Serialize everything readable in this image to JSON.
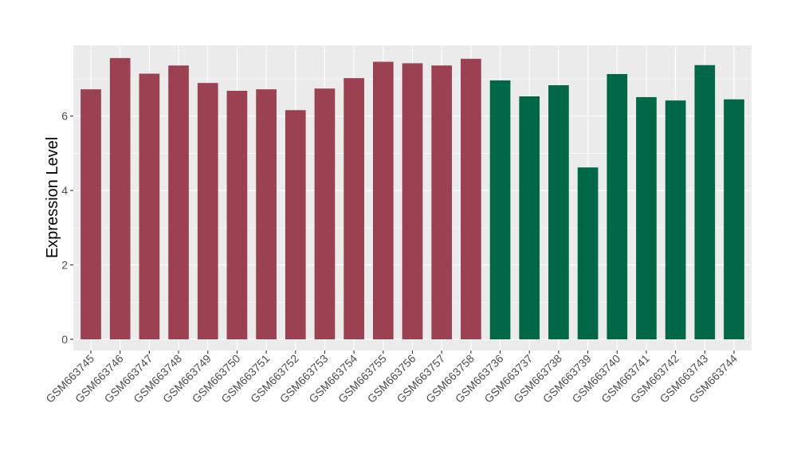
{
  "chart_data": {
    "type": "bar",
    "ylabel": "Expression Level",
    "xlabel": "",
    "ylim": [
      -0.3,
      7.9
    ],
    "yticks": [
      0,
      2,
      4,
      6
    ],
    "grid": true,
    "panel_background": "#ebebeb",
    "categories": [
      "GSM663745",
      "GSM663746",
      "GSM663747",
      "GSM663748",
      "GSM663749",
      "GSM663750",
      "GSM663751",
      "GSM663752",
      "GSM663753",
      "GSM663754",
      "GSM663755",
      "GSM663756",
      "GSM663757",
      "GSM663758",
      "GSM663736",
      "GSM663737",
      "GSM663738",
      "GSM663739",
      "GSM663740",
      "GSM663741",
      "GSM663742",
      "GSM663743",
      "GSM663744"
    ],
    "values": [
      6.72,
      7.56,
      7.14,
      7.36,
      6.89,
      6.68,
      6.72,
      6.16,
      6.74,
      7.02,
      7.46,
      7.42,
      7.36,
      7.54,
      6.96,
      6.53,
      6.83,
      4.62,
      7.13,
      6.51,
      6.42,
      7.37,
      6.45
    ],
    "bar_colors": [
      "#9b4151",
      "#9b4151",
      "#9b4151",
      "#9b4151",
      "#9b4151",
      "#9b4151",
      "#9b4151",
      "#9b4151",
      "#9b4151",
      "#9b4151",
      "#9b4151",
      "#9b4151",
      "#9b4151",
      "#9b4151",
      "#006846",
      "#006846",
      "#006846",
      "#006846",
      "#006846",
      "#006846",
      "#006846",
      "#006846",
      "#006846"
    ]
  }
}
